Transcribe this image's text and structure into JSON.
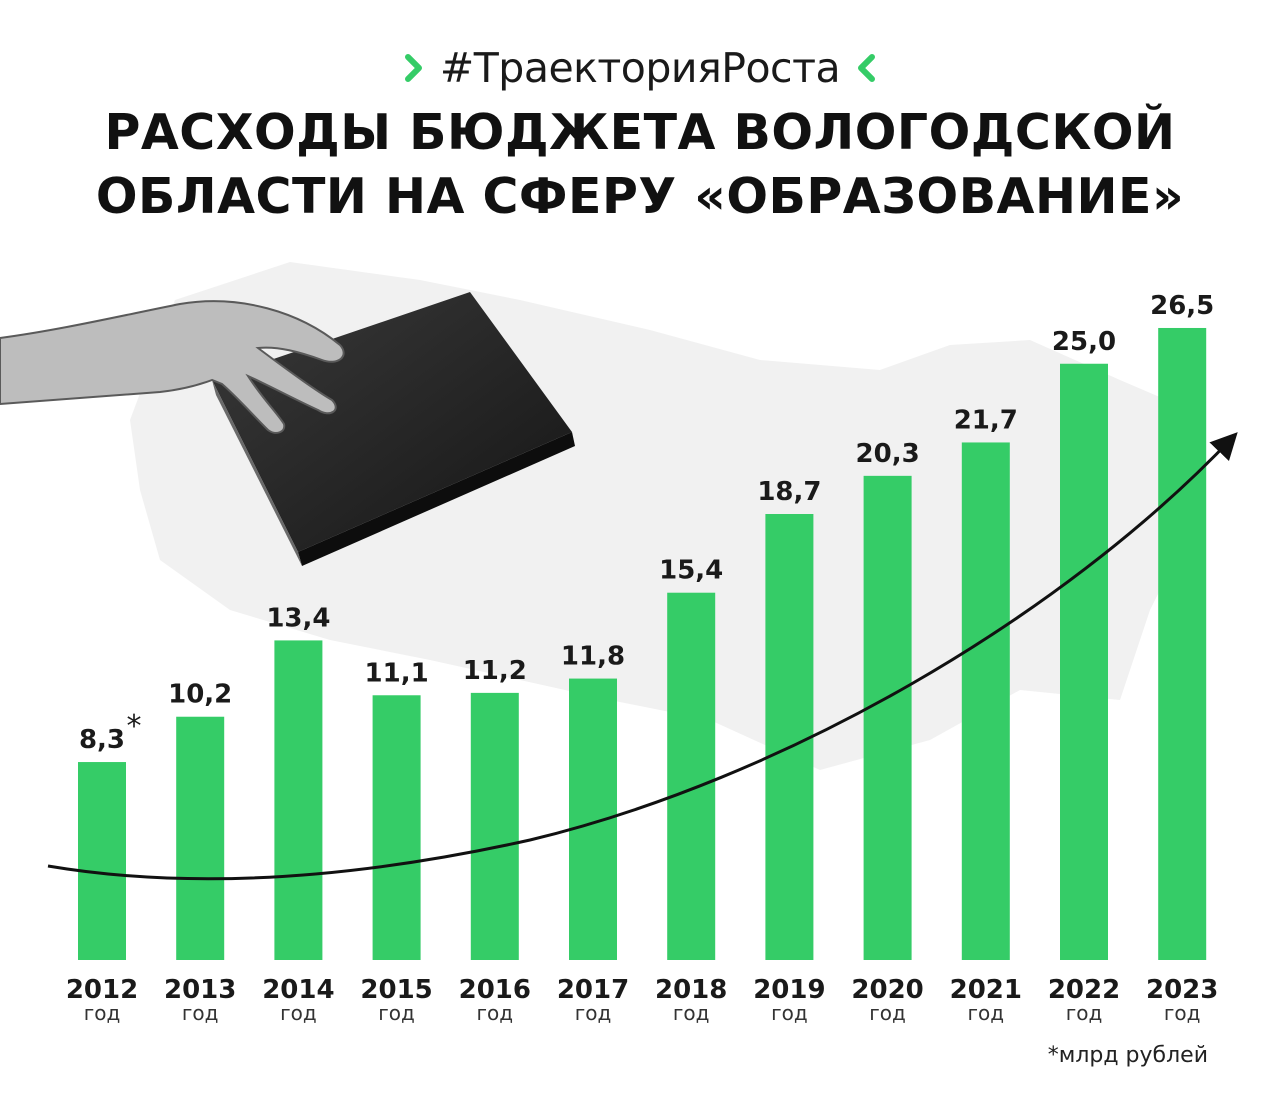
{
  "header": {
    "hashtag": "#ТраекторияРоста",
    "title_line1": "РАСХОДЫ БЮДЖЕТА ВОЛОГОДСКОЙ",
    "title_line2": "ОБЛАСТИ НА СФЕРУ «ОБРАЗОВАНИЕ»",
    "chevron_icon": "chevron-icon",
    "accent_color": "#35cc67"
  },
  "chart_data": {
    "type": "bar",
    "categories": [
      "2012",
      "2013",
      "2014",
      "2015",
      "2016",
      "2017",
      "2018",
      "2019",
      "2020",
      "2021",
      "2022",
      "2023"
    ],
    "category_sublabel": "год",
    "values": [
      8.3,
      10.2,
      13.4,
      11.1,
      11.2,
      11.8,
      15.4,
      18.7,
      20.3,
      21.7,
      25.0,
      26.5
    ],
    "value_labels": [
      "8,3",
      "10,2",
      "13,4",
      "11,1",
      "11,2",
      "11,8",
      "15,4",
      "18,7",
      "20,3",
      "21,7",
      "25,0",
      "26,5"
    ],
    "first_label_marker": "*",
    "unit_note": "*млрд рублей",
    "trend_arrow": true,
    "bar_color": "#35cc67",
    "ylim": [
      0,
      30
    ]
  }
}
